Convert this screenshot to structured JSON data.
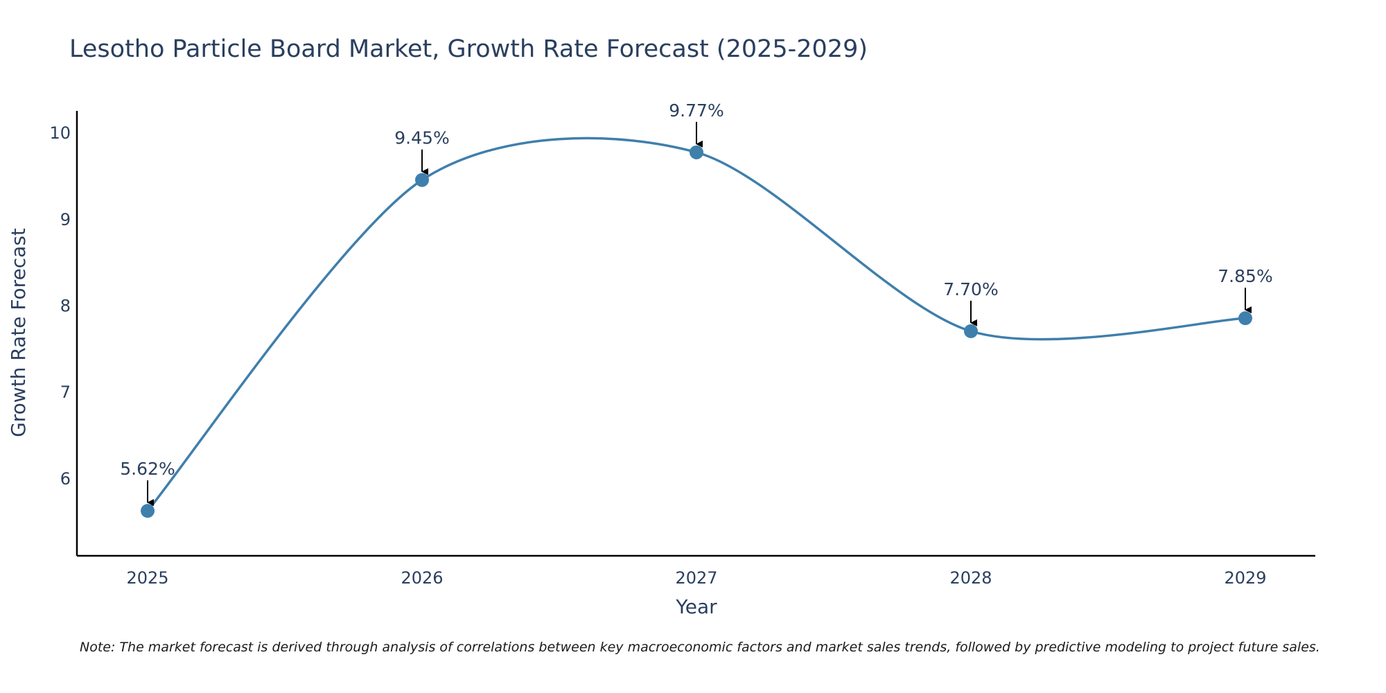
{
  "chart_data": {
    "type": "line",
    "title": "Lesotho Particle Board Market, Growth Rate Forecast (2025-2029)",
    "xlabel": "Year",
    "ylabel": "Growth Rate Forecast",
    "categories": [
      "2025",
      "2026",
      "2027",
      "2028",
      "2029"
    ],
    "series": [
      {
        "name": "Growth Rate Forecast",
        "values": [
          5.62,
          9.45,
          9.77,
          7.7,
          7.85
        ],
        "labels": [
          "5.62%",
          "9.45%",
          "9.77%",
          "7.70%",
          "7.85%"
        ]
      }
    ],
    "yticks": [
      "6",
      "7",
      "8",
      "9",
      "10"
    ],
    "ylim": [
      5.1,
      10.25
    ],
    "grid": false,
    "line_color": "#3f7fac",
    "marker_color": "#3f7fac",
    "arrow_color": "#000000",
    "note": "Note: The market forecast is derived through analysis of correlations between key macroeconomic factors and market sales trends, followed by predictive modeling to project future sales."
  }
}
